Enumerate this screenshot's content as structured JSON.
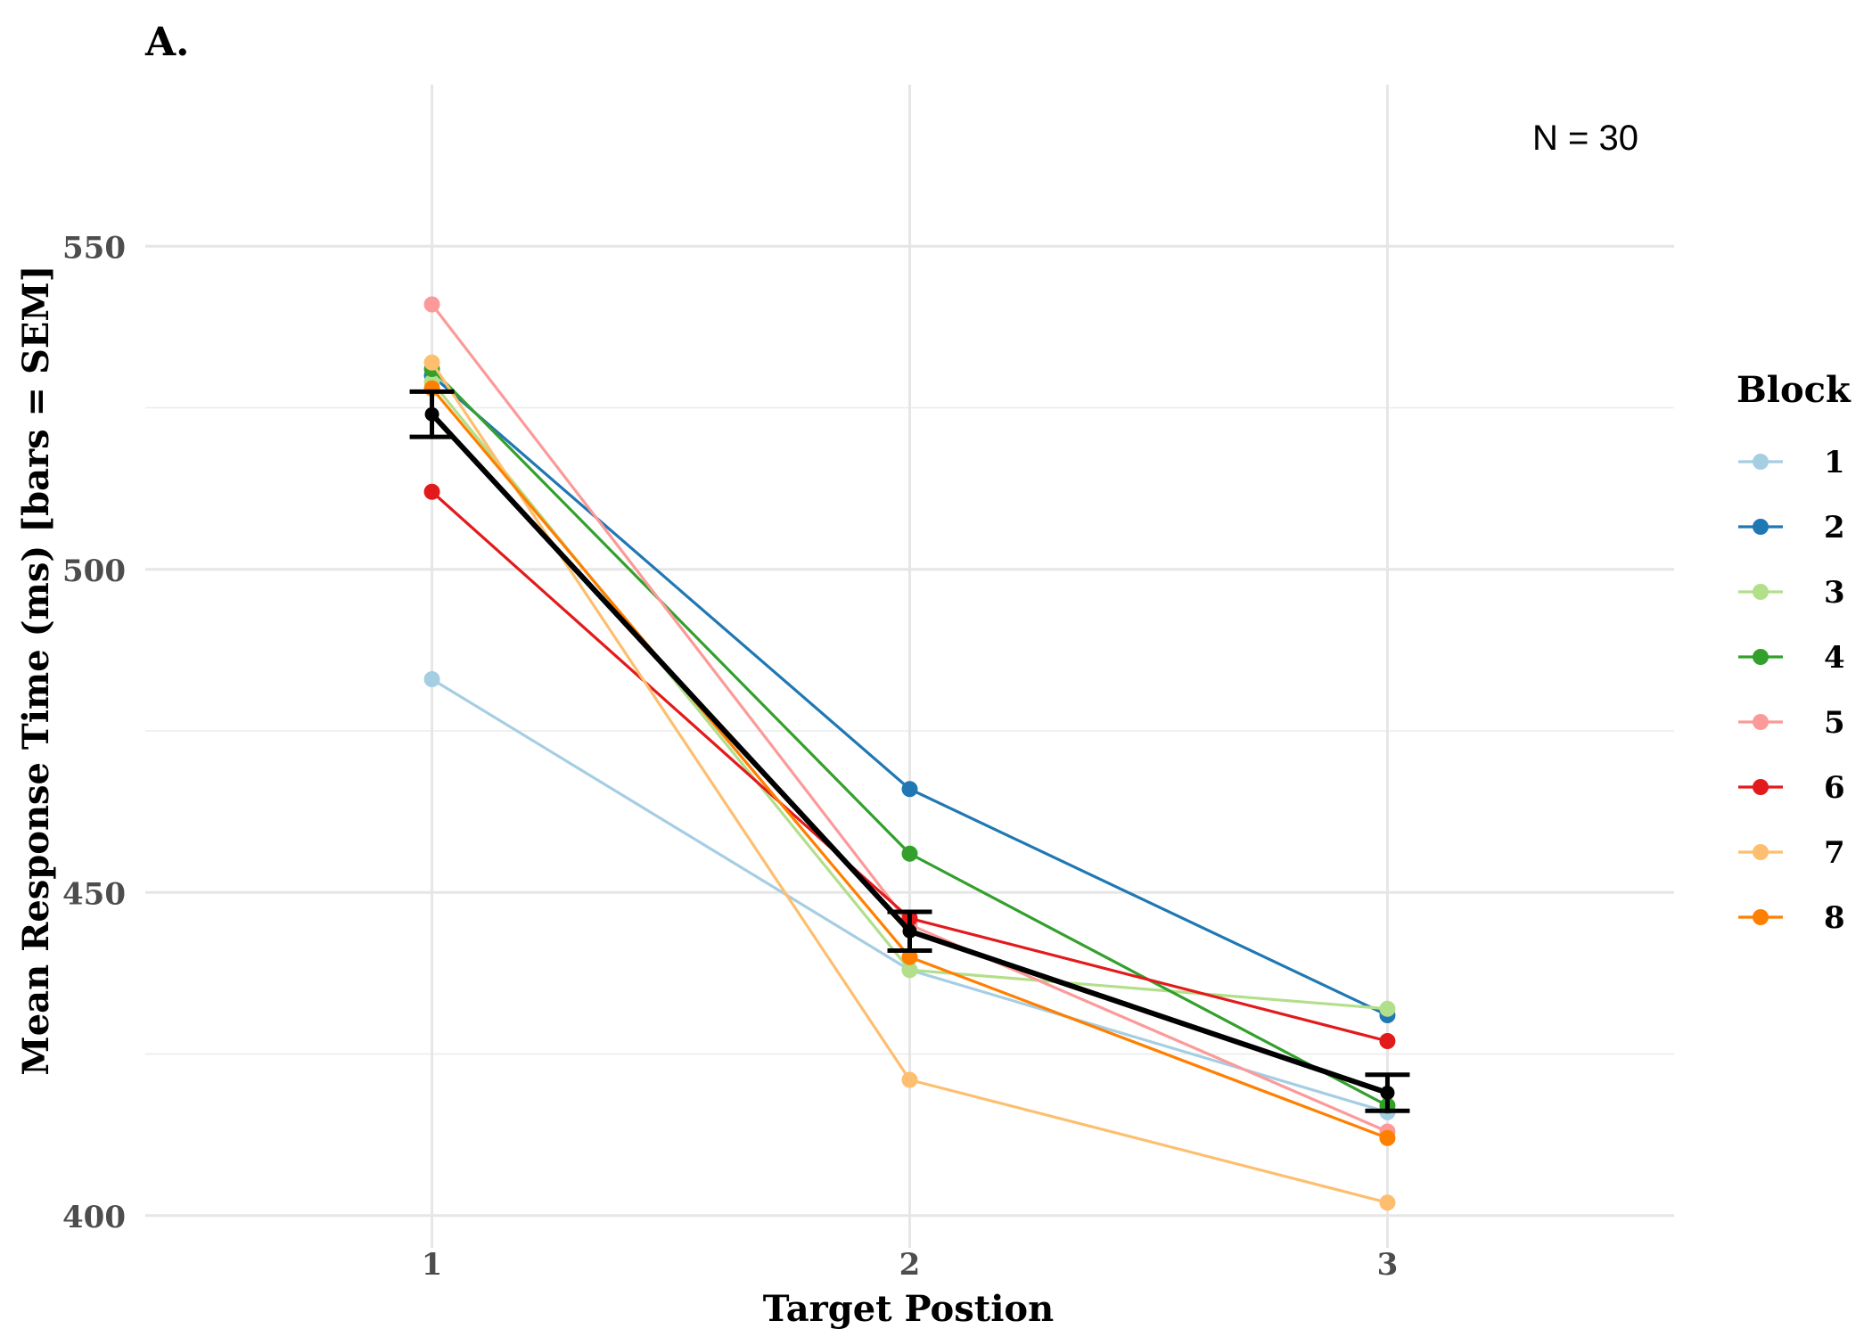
{
  "panel_label": "A.",
  "annotation": "N = 30",
  "chart_data": {
    "type": "line",
    "title": "",
    "xlabel": "Target Postion",
    "ylabel": "Mean Response Time (ms) [bars = SEM]",
    "x": [
      1,
      2,
      3
    ],
    "x_tick_labels": [
      "1",
      "2",
      "3"
    ],
    "ylim": [
      395,
      575
    ],
    "y_ticks": [
      400,
      450,
      500,
      550
    ],
    "y_tick_labels": [
      "400",
      "450",
      "500",
      "550"
    ],
    "grid": true,
    "legend": {
      "title": "Block",
      "placement": "right"
    },
    "series": [
      {
        "name": "1",
        "color": "#a6cee3",
        "values": [
          483,
          438,
          416
        ]
      },
      {
        "name": "2",
        "color": "#1f78b4",
        "values": [
          530,
          466,
          431
        ]
      },
      {
        "name": "3",
        "color": "#b2df8a",
        "values": [
          529,
          438,
          432
        ]
      },
      {
        "name": "4",
        "color": "#33a02c",
        "values": [
          531,
          456,
          417
        ]
      },
      {
        "name": "5",
        "color": "#fb9a99",
        "values": [
          541,
          445,
          413
        ]
      },
      {
        "name": "6",
        "color": "#e31a1c",
        "values": [
          512,
          446,
          427
        ]
      },
      {
        "name": "7",
        "color": "#fdbf6f",
        "values": [
          532,
          421,
          402
        ]
      },
      {
        "name": "8",
        "color": "#ff7f00",
        "values": [
          528,
          440,
          412
        ]
      }
    ],
    "mean": {
      "color": "#000000",
      "values": [
        524,
        444,
        419
      ],
      "sem": [
        3.5,
        3,
        2.8
      ]
    }
  }
}
